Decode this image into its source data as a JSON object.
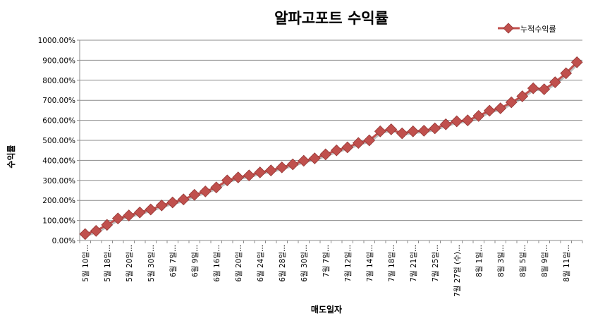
{
  "chart_data": {
    "type": "line",
    "title": "알파고포트 수익률",
    "xlabel": "매도일자",
    "ylabel": "수익률",
    "ylim": [
      0,
      1000
    ],
    "y_tick_step": 100,
    "y_tick_labels": [
      "0.00%",
      "100.00%",
      "200.00%",
      "300.00%",
      "400.00%",
      "500.00%",
      "600.00%",
      "700.00%",
      "800.00%",
      "900.00%",
      "1000.00%"
    ],
    "grid": true,
    "legend_position": "top-right",
    "marker_color": "#c0504d",
    "line_color": "#c0504d",
    "x_tick_labels": [
      "5월 10일...",
      "5월 18일...",
      "5월 20일...",
      "5월 30일...",
      "6월 7일...",
      "6월 9일...",
      "6월 16일...",
      "6월 20일...",
      "6월 24일...",
      "6월 28일...",
      "6월 30일...",
      "7월 7일...",
      "7월 12일...",
      "7월 14일...",
      "7월 18일...",
      "7월 21일...",
      "7월 25일...",
      "7월 27일 (수)...",
      "8월 1일...",
      "8월 3일...",
      "8월 5일...",
      "8월 9일...",
      "8월 11일..."
    ],
    "x_label_every": 2,
    "series": [
      {
        "name": "누적수익률",
        "values": [
          32,
          48,
          78,
          110,
          125,
          140,
          155,
          175,
          190,
          205,
          228,
          245,
          265,
          300,
          315,
          325,
          340,
          350,
          365,
          380,
          398,
          410,
          430,
          450,
          465,
          487,
          500,
          545,
          555,
          535,
          545,
          548,
          560,
          580,
          595,
          600,
          622,
          648,
          660,
          690,
          720,
          760,
          755,
          790,
          835,
          890
        ]
      }
    ]
  }
}
